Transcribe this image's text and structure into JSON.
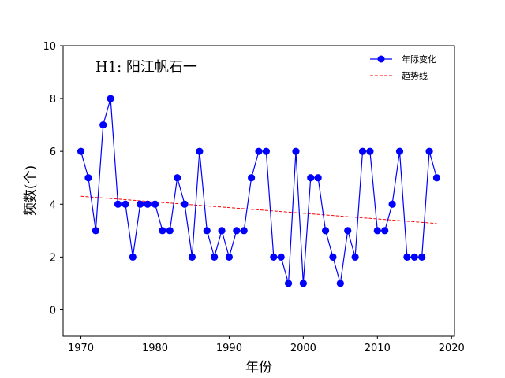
{
  "chart_data": {
    "type": "line",
    "title": "",
    "annotation": "H1: 阳江帆石一",
    "xlabel": "年份",
    "ylabel": "频数(个)",
    "xlim": [
      1967.6,
      2020.4
    ],
    "ylim": [
      -1,
      10
    ],
    "xticks": [
      1970,
      1980,
      1990,
      2000,
      2010,
      2020
    ],
    "yticks": [
      0,
      2,
      4,
      6,
      8,
      10
    ],
    "grid": false,
    "legend_position": "top-right",
    "colors": {
      "series": "#0000ff",
      "trend": "#ff0000"
    },
    "x": [
      1970,
      1971,
      1972,
      1973,
      1974,
      1975,
      1976,
      1977,
      1978,
      1979,
      1980,
      1981,
      1982,
      1983,
      1984,
      1985,
      1986,
      1987,
      1988,
      1989,
      1990,
      1991,
      1992,
      1993,
      1994,
      1995,
      1996,
      1997,
      1998,
      1999,
      2000,
      2001,
      2002,
      2003,
      2004,
      2005,
      2006,
      2007,
      2008,
      2009,
      2010,
      2011,
      2012,
      2013,
      2014,
      2015,
      2016,
      2017,
      2018
    ],
    "series": [
      {
        "name": "年际变化",
        "style": "line-marker",
        "values": [
          6,
          5,
          3,
          7,
          8,
          4,
          4,
          2,
          4,
          4,
          4,
          3,
          3,
          5,
          4,
          2,
          6,
          3,
          2,
          3,
          2,
          3,
          3,
          5,
          6,
          6,
          2,
          2,
          1,
          6,
          1,
          5,
          5,
          3,
          2,
          1,
          3,
          2,
          6,
          6,
          3,
          3,
          4,
          6,
          2,
          2,
          2,
          6,
          5
        ]
      },
      {
        "name": "趋势线",
        "style": "dashed",
        "x": [
          1970,
          2018
        ],
        "values": [
          4.3,
          3.27
        ]
      }
    ]
  }
}
